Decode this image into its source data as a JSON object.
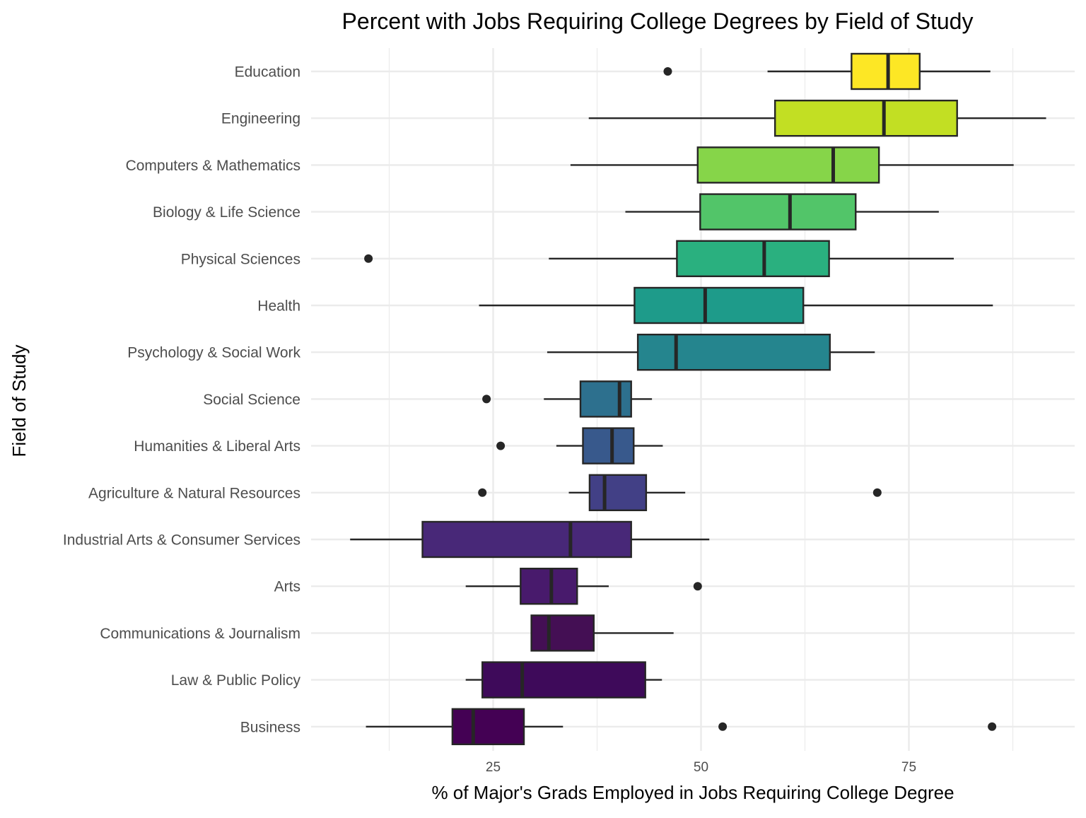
{
  "chart_data": {
    "type": "boxplot",
    "orientation": "horizontal",
    "title": "Percent with Jobs Requiring College Degrees by Field of Study",
    "xlabel": "% of Major's Grads Employed in Jobs Requiring College Degree",
    "ylabel": "Field of Study",
    "xlim": [
      7,
      95
    ],
    "x_ticks": [
      25,
      50,
      75
    ],
    "x_tick_labels": [
      "25",
      "50",
      "75"
    ],
    "grid": true,
    "legend": "none",
    "categories": [
      "Education",
      "Engineering",
      "Computers & Mathematics",
      "Biology & Life Science",
      "Physical Sciences",
      "Health",
      "Psychology & Social Work",
      "Social Science",
      "Humanities & Liberal Arts",
      "Agriculture & Natural Resources",
      "Industrial Arts & Consumer Services",
      "Arts",
      "Communications & Journalism",
      "Law & Public Policy",
      "Business"
    ],
    "boxes": [
      {
        "category": "Education",
        "whisker_low": 58.0,
        "q1": 68.1,
        "median": 72.5,
        "q3": 76.3,
        "whisker_high": 84.8,
        "outliers": [
          46.0
        ],
        "color": "#fde725"
      },
      {
        "category": "Engineering",
        "whisker_low": 36.5,
        "q1": 58.9,
        "median": 72.0,
        "q3": 80.8,
        "whisker_high": 91.5,
        "outliers": [],
        "color": "#c2df23"
      },
      {
        "category": "Computers & Mathematics",
        "whisker_low": 34.3,
        "q1": 49.6,
        "median": 65.9,
        "q3": 71.4,
        "whisker_high": 87.6,
        "outliers": [],
        "color": "#86d549"
      },
      {
        "category": "Biology & Life Science",
        "whisker_low": 40.9,
        "q1": 49.9,
        "median": 60.7,
        "q3": 68.6,
        "whisker_high": 78.6,
        "outliers": [],
        "color": "#52c569"
      },
      {
        "category": "Physical Sciences",
        "whisker_low": 31.7,
        "q1": 47.1,
        "median": 57.6,
        "q3": 65.4,
        "whisker_high": 80.4,
        "outliers": [
          10.0
        ],
        "color": "#2ab07f"
      },
      {
        "category": "Health",
        "whisker_low": 23.3,
        "q1": 42.0,
        "median": 50.5,
        "q3": 62.3,
        "whisker_high": 85.1,
        "outliers": [],
        "color": "#1e9b8a"
      },
      {
        "category": "Psychology & Social Work",
        "whisker_low": 31.5,
        "q1": 42.4,
        "median": 47.0,
        "q3": 65.5,
        "whisker_high": 70.9,
        "outliers": [],
        "color": "#25858e"
      },
      {
        "category": "Social Science",
        "whisker_low": 31.1,
        "q1": 35.5,
        "median": 40.2,
        "q3": 41.6,
        "whisker_high": 44.1,
        "outliers": [
          24.2
        ],
        "color": "#2d708e"
      },
      {
        "category": "Humanities & Liberal Arts",
        "whisker_low": 32.6,
        "q1": 35.8,
        "median": 39.3,
        "q3": 41.9,
        "whisker_high": 45.4,
        "outliers": [
          25.9
        ],
        "color": "#38598c"
      },
      {
        "category": "Agriculture & Natural Resources",
        "whisker_low": 34.1,
        "q1": 36.6,
        "median": 38.4,
        "q3": 43.4,
        "whisker_high": 48.1,
        "outliers": [
          23.7,
          71.2
        ],
        "color": "#424086"
      },
      {
        "category": "Industrial Arts & Consumer Services",
        "whisker_low": 7.8,
        "q1": 16.5,
        "median": 34.3,
        "q3": 41.6,
        "whisker_high": 51.0,
        "outliers": [],
        "color": "#482878"
      },
      {
        "category": "Arts",
        "whisker_low": 21.7,
        "q1": 28.3,
        "median": 32.0,
        "q3": 35.1,
        "whisker_high": 38.9,
        "outliers": [
          49.6
        ],
        "color": "#481a6c"
      },
      {
        "category": "Communications & Journalism",
        "whisker_low": 29.6,
        "q1": 29.6,
        "median": 31.7,
        "q3": 37.1,
        "whisker_high": 46.7,
        "outliers": [],
        "color": "#440f54"
      },
      {
        "category": "Law & Public Policy",
        "whisker_low": 21.7,
        "q1": 23.7,
        "median": 28.5,
        "q3": 43.3,
        "whisker_high": 45.3,
        "outliers": [],
        "color": "#3e0a5a"
      },
      {
        "category": "Business",
        "whisker_low": 9.7,
        "q1": 20.1,
        "median": 22.6,
        "q3": 28.7,
        "whisker_high": 33.4,
        "outliers": [
          52.6,
          85.0
        ],
        "color": "#440154"
      }
    ]
  }
}
